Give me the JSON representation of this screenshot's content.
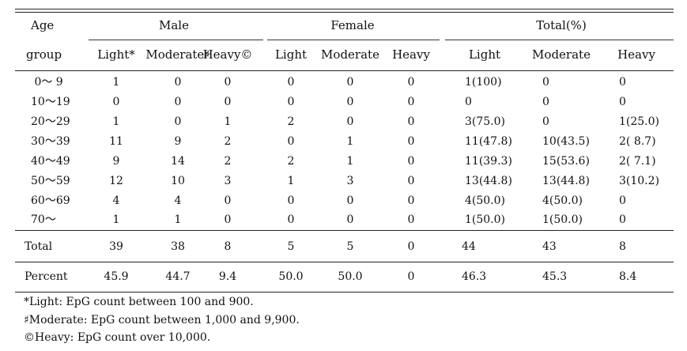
{
  "header": {
    "age_line1": "Age",
    "age_line2": "group",
    "groups": [
      "Male",
      "Female",
      "Total(%)"
    ],
    "subcolumns": [
      "Light*",
      "Moderate♯",
      "Heavy©",
      "Light",
      "Moderate",
      "Heavy",
      "Light",
      "Moderate",
      "Heavy"
    ]
  },
  "rows": [
    {
      "age": " 0〜 9",
      "values": [
        "1",
        "0",
        "0",
        "0",
        "0",
        "0",
        "1(100)",
        "0",
        "0"
      ]
    },
    {
      "age": "10〜19",
      "values": [
        "0",
        "0",
        "0",
        "0",
        "0",
        "0",
        "0",
        "0",
        "0"
      ]
    },
    {
      "age": "20〜29",
      "values": [
        "1",
        "0",
        "1",
        "2",
        "0",
        "0",
        "3(75.0)",
        "0",
        "1(25.0)"
      ]
    },
    {
      "age": "30〜39",
      "values": [
        "11",
        "9",
        "2",
        "0",
        "1",
        "0",
        "11(47.8)",
        "10(43.5)",
        "2( 8.7)"
      ]
    },
    {
      "age": "40〜49",
      "values": [
        "9",
        "14",
        "2",
        "2",
        "1",
        "0",
        "11(39.3)",
        "15(53.6)",
        "2( 7.1)"
      ]
    },
    {
      "age": "50〜59",
      "values": [
        "12",
        "10",
        "3",
        "1",
        "3",
        "0",
        "13(44.8)",
        "13(44.8)",
        "3(10.2)"
      ]
    },
    {
      "age": "60〜69",
      "values": [
        "4",
        "4",
        "0",
        "0",
        "0",
        "0",
        "4(50.0)",
        "4(50.0)",
        "0"
      ]
    },
    {
      "age": "70〜",
      "values": [
        "1",
        "1",
        "0",
        "0",
        "0",
        "0",
        "1(50.0)",
        "1(50.0)",
        "0"
      ]
    }
  ],
  "total": {
    "label": "Total",
    "values": [
      "39",
      "38",
      "8",
      "5",
      "5",
      "0",
      "44",
      "43",
      "8"
    ]
  },
  "percent": {
    "label": "Percent",
    "values": [
      "45.9",
      "44.7",
      "9.4",
      "50.0",
      "50.0",
      "0",
      "46.3",
      "45.3",
      "8.4"
    ]
  },
  "footnotes": [
    "*Light: EpG count between 100 and 900.",
    "♯Moderate: EpG count between 1,000 and 9,900.",
    "©Heavy: EpG count over 10,000."
  ]
}
